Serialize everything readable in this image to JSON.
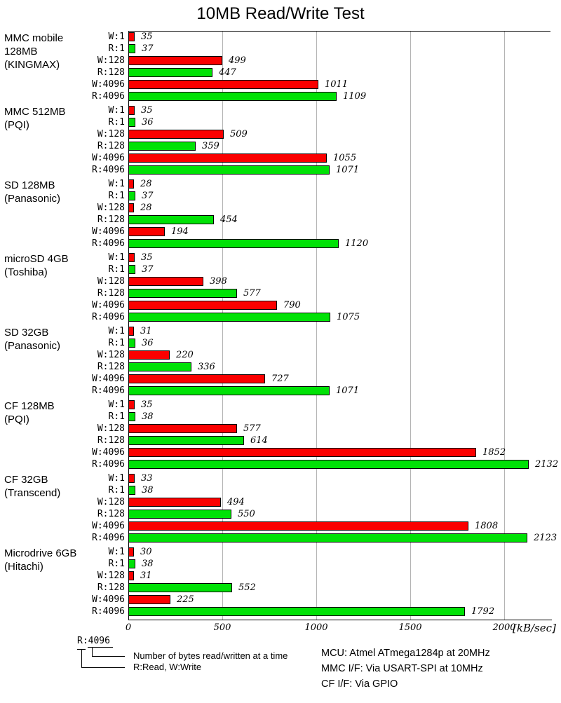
{
  "chart_data": {
    "type": "bar",
    "orientation": "horizontal",
    "title": "10MB Read/Write Test",
    "unit": "[kB/sec]",
    "xlim": [
      0,
      2246
    ],
    "x_ticks": [
      0,
      500,
      1000,
      1500,
      2000
    ],
    "grid": "vertical-gridlines-on",
    "bar_labels": [
      "W:1",
      "R:1",
      "W:128",
      "R:128",
      "W:4096",
      "R:4096"
    ],
    "colors": {
      "write": "#fb0000",
      "read": "#00e206",
      "gridline": "#b3b3b3"
    },
    "groups": [
      {
        "device": [
          "MMC mobile",
          "128MB",
          "(KINGMAX)"
        ],
        "values": [
          35,
          37,
          499,
          447,
          1011,
          1109
        ]
      },
      {
        "device": [
          "MMC 512MB",
          "(PQI)"
        ],
        "values": [
          35,
          36,
          509,
          359,
          1055,
          1071
        ]
      },
      {
        "device": [
          "SD 128MB",
          "(Panasonic)"
        ],
        "values": [
          28,
          37,
          28,
          454,
          194,
          1120
        ]
      },
      {
        "device": [
          "microSD 4GB",
          "(Toshiba)"
        ],
        "values": [
          35,
          37,
          398,
          577,
          790,
          1075
        ]
      },
      {
        "device": [
          "SD 32GB",
          "(Panasonic)"
        ],
        "values": [
          31,
          36,
          220,
          336,
          727,
          1071
        ]
      },
      {
        "device": [
          "CF 128MB",
          "(PQI)"
        ],
        "values": [
          35,
          38,
          577,
          614,
          1852,
          2132
        ]
      },
      {
        "device": [
          "CF 32GB",
          "(Transcend)"
        ],
        "values": [
          33,
          38,
          494,
          550,
          1808,
          2123
        ]
      },
      {
        "device": [
          "Microdrive 6GB",
          "(Hitachi)"
        ],
        "values": [
          30,
          38,
          31,
          552,
          225,
          1792
        ]
      }
    ]
  },
  "legend": {
    "key_label": "R:4096",
    "bytes_note": "Number of bytes read/written at a time",
    "rw_note": "R:Read, W:Write"
  },
  "info": {
    "mcu": "MCU: Atmel ATmega1284p at 20MHz",
    "mmc": "MMC I/F: Via USART-SPI at 10MHz",
    "cf": "CF I/F: Via GPIO"
  }
}
